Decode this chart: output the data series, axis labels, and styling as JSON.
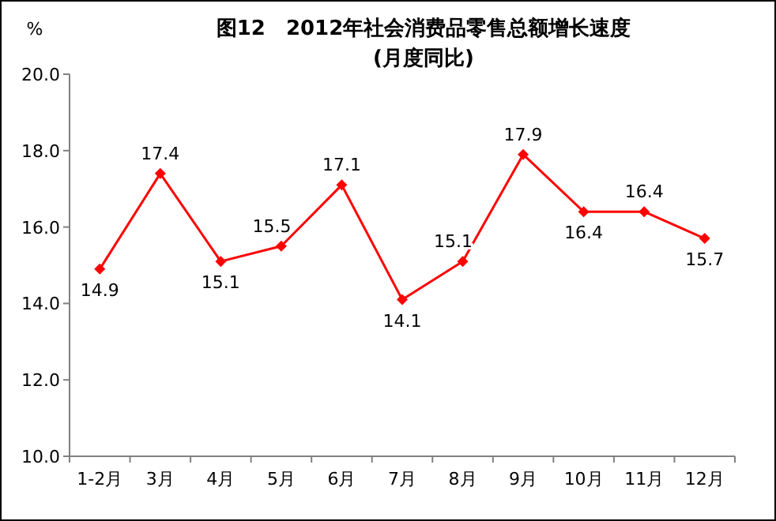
{
  "chart_data": {
    "type": "line",
    "title": "图12　2012年社会消费品零售总额增长速度",
    "subtitle": "(月度同比)",
    "ylabel": "%",
    "categories": [
      "1-2月",
      "3月",
      "4月",
      "5月",
      "6月",
      "7月",
      "8月",
      "9月",
      "10月",
      "11月",
      "12月"
    ],
    "values": [
      14.9,
      17.4,
      15.1,
      15.5,
      17.1,
      14.1,
      15.1,
      17.9,
      16.4,
      16.4,
      15.7
    ],
    "color": "#ff0000",
    "marker": "diamond",
    "data_labels": true,
    "ylim": [
      10,
      20
    ],
    "yticks": [
      {
        "value": 10,
        "label": "10.0"
      },
      {
        "value": 12,
        "label": "12.0"
      },
      {
        "value": 14,
        "label": "14.0"
      },
      {
        "value": 16,
        "label": "16.0"
      },
      {
        "value": 18,
        "label": "18.0"
      },
      {
        "value": 20,
        "label": "20.0"
      }
    ]
  }
}
